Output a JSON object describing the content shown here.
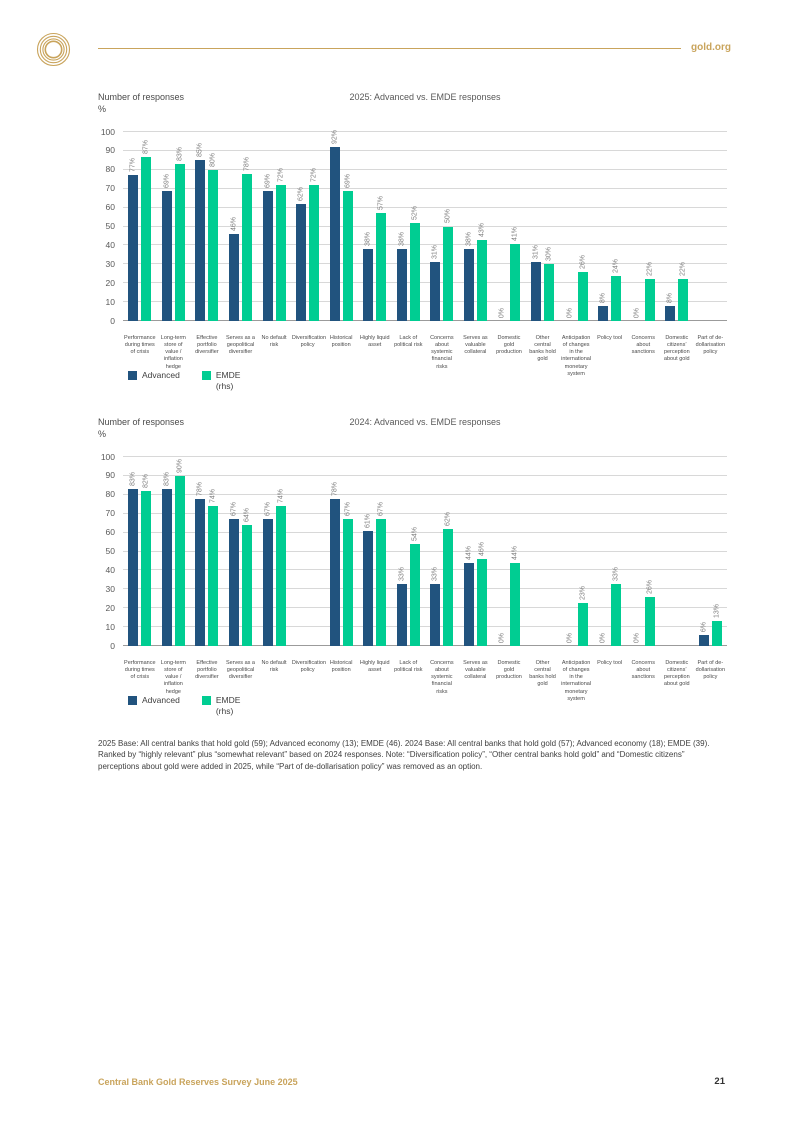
{
  "header": {
    "site": "gold.org",
    "logo_icon": "concentric-gold-rings"
  },
  "colors": {
    "advanced": "#21537E",
    "emde": "#00CD92",
    "gold_accent": "#C9A45C",
    "gridline": "#d8d8d8"
  },
  "chart_data": [
    {
      "type": "bar",
      "title": "2025: Advanced vs. EMDE responses",
      "ylabel": "Number of responses",
      "ylabel_unit": "%",
      "ylim": [
        0,
        100
      ],
      "ytick_step": 10,
      "grid": true,
      "legend_position": "bottom-left",
      "categories": [
        "Performance during times of crisis",
        "Long-term store of value / inflation hedge",
        "Effective portfolio diversifier",
        "Serves as a geopolitical diversifier",
        "No default risk",
        "Diversification policy",
        "Historical position",
        "Highly liquid asset",
        "Lack of political risk",
        "Concerns about systemic financial risks",
        "Serves as valuable collateral",
        "Domestic gold production",
        "Other central banks hold gold",
        "Anticipation of changes in the international monetary system",
        "Policy tool",
        "Concerns about sanctions",
        "Domestic citizens’ perception about gold",
        "Part of de-dollarisation policy"
      ],
      "series": [
        {
          "name": "Advanced",
          "sublabel": "",
          "color": "#21537E",
          "values": [
            77,
            69,
            85,
            46,
            69,
            62,
            92,
            38,
            38,
            31,
            38,
            0,
            31,
            0,
            8,
            0,
            8,
            null
          ]
        },
        {
          "name": "EMDE",
          "sublabel": "(rhs)",
          "color": "#00CD92",
          "values": [
            87,
            83,
            80,
            78,
            72,
            72,
            69,
            57,
            52,
            50,
            43,
            41,
            30,
            26,
            24,
            22,
            22,
            null
          ]
        }
      ]
    },
    {
      "type": "bar",
      "title": "2024: Advanced vs. EMDE responses",
      "ylabel": "Number of responses",
      "ylabel_unit": "%",
      "ylim": [
        0,
        100
      ],
      "ytick_step": 10,
      "grid": true,
      "legend_position": "bottom-left",
      "categories": [
        "Performance during times of crisis",
        "Long-term store of value / inflation hedge",
        "Effective portfolio diversifier",
        "Serves as a geopolitical diversifier",
        "No default risk",
        "Diversification policy",
        "Historical position",
        "Highly liquid asset",
        "Lack of political risk",
        "Concerns about systemic financial risks",
        "Serves as valuable collateral",
        "Domestic gold production",
        "Other central banks hold gold",
        "Anticipation of changes in the international monetary system",
        "Policy tool",
        "Concerns about sanctions",
        "Domestic citizens’ perception about gold",
        "Part of de-dollarisation policy"
      ],
      "series": [
        {
          "name": "Advanced",
          "sublabel": "",
          "color": "#21537E",
          "values": [
            83,
            83,
            78,
            67,
            67,
            null,
            78,
            61,
            33,
            33,
            44,
            0,
            null,
            0,
            0,
            0,
            null,
            6
          ]
        },
        {
          "name": "EMDE",
          "sublabel": "(rhs)",
          "color": "#00CD92",
          "values": [
            82,
            90,
            74,
            64,
            74,
            null,
            67,
            67,
            54,
            62,
            46,
            44,
            null,
            23,
            33,
            26,
            null,
            13
          ]
        }
      ]
    }
  ],
  "note": "2025 Base: All central banks that hold gold (59); Advanced economy (13); EMDE (46). 2024 Base: All central banks that hold gold (57); Advanced economy (18); EMDE (39). Ranked by “highly relevant” plus “somewhat relevant” based on 2024 responses. Note: “Diversification policy”, “Other central banks hold gold” and “Domestic citizens” perceptions about gold were added in 2025, while “Part of de-dollarisation policy” was removed as an option.",
  "footer": {
    "doc_title": "Central Bank Gold Reserves Survey June 2025",
    "page_number": "21"
  }
}
